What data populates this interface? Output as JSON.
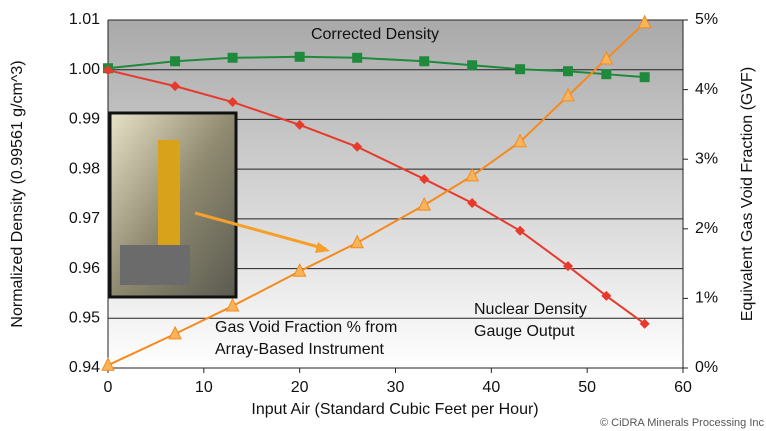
{
  "chart_data": {
    "type": "line",
    "x": [
      0,
      7,
      13,
      20,
      26,
      33,
      38,
      43,
      48,
      52,
      56
    ],
    "series": [
      {
        "name": "Corrected Density",
        "color": "#1f8a3b",
        "marker": "square",
        "values": [
          1.0003,
          1.0017,
          1.0024,
          1.0026,
          1.0024,
          1.0017,
          1.0009,
          1.0001,
          0.9997,
          0.9991,
          0.9985
        ]
      },
      {
        "name": "Nuclear Density Gauge Output",
        "color": "#e83a2c",
        "marker": "diamond",
        "values": [
          0.9999,
          0.9967,
          0.9935,
          0.9889,
          0.9845,
          0.978,
          0.9732,
          0.9676,
          0.9605,
          0.9545,
          0.9489
        ]
      },
      {
        "name": "Gas Void Fraction % from Array-Based Instrument",
        "color": "#f58a1f",
        "marker": "triangle",
        "axis": "y2",
        "values": [
          0.04,
          0.49,
          0.89,
          1.39,
          1.8,
          2.34,
          2.76,
          3.25,
          3.91,
          4.44,
          4.96
        ]
      }
    ],
    "xlabel": "Input Air (Standard Cubic Feet per Hour)",
    "ylabel": "Normalized Density (0.99561 g/cm^3)",
    "y2label": "Equivalent Gas Void Fraction (GVF)",
    "xlim": [
      0,
      60
    ],
    "xticks": [
      0,
      10,
      20,
      30,
      40,
      50,
      60
    ],
    "ylim": [
      0.94,
      1.01
    ],
    "yticks": [
      0.94,
      0.95,
      0.96,
      0.97,
      0.98,
      0.99,
      {
        "value": 1,
        "label": "1.00"
      },
      1.01
    ],
    "y2lim": [
      0,
      5
    ],
    "y2ticks": [
      {
        "value": 0,
        "label": "0%"
      },
      {
        "value": 1,
        "label": "1%"
      },
      {
        "value": 2,
        "label": "2%"
      },
      {
        "value": 3,
        "label": "3%"
      },
      {
        "value": 4,
        "label": "4%"
      },
      {
        "value": 5,
        "label": "5%"
      }
    ],
    "grid": true,
    "annotations": [
      "Corrected Density",
      "Gas Void Fraction % from",
      "Array-Based Instrument",
      "Nuclear Density",
      "Gauge Output"
    ],
    "source": "© CiDRA Minerals Processing Inc"
  }
}
